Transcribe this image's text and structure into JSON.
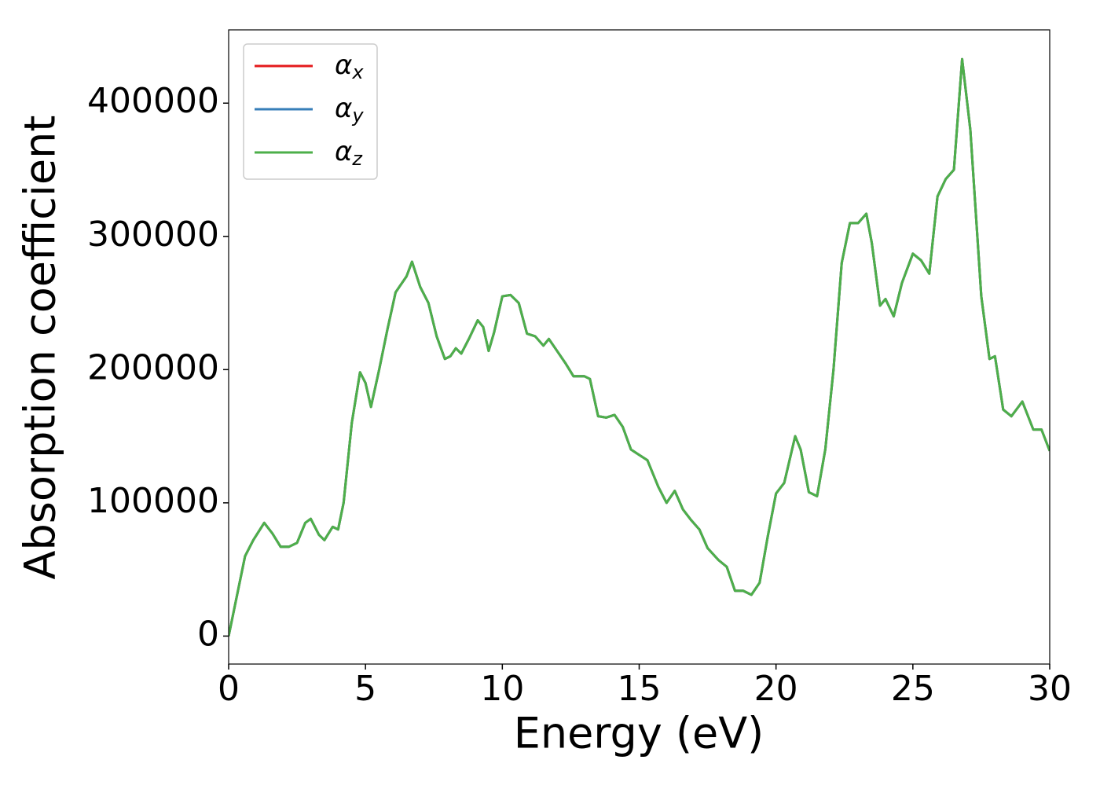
{
  "chart_data": {
    "type": "line",
    "xlabel": "Energy (eV)",
    "ylabel": "Absorption coefficient",
    "x": [
      0,
      0.3,
      0.6,
      0.9,
      1.3,
      1.6,
      1.9,
      2.2,
      2.5,
      2.8,
      3.0,
      3.3,
      3.5,
      3.8,
      4.0,
      4.2,
      4.5,
      4.8,
      5.0,
      5.2,
      5.5,
      5.8,
      6.1,
      6.3,
      6.5,
      6.7,
      7.0,
      7.3,
      7.6,
      7.9,
      8.1,
      8.3,
      8.5,
      8.8,
      9.1,
      9.3,
      9.5,
      9.7,
      10.0,
      10.3,
      10.6,
      10.9,
      11.2,
      11.5,
      11.7,
      12.0,
      12.3,
      12.6,
      13.0,
      13.2,
      13.5,
      13.8,
      14.1,
      14.4,
      14.7,
      15.0,
      15.3,
      15.7,
      16.0,
      16.3,
      16.6,
      16.9,
      17.2,
      17.5,
      17.9,
      18.2,
      18.5,
      18.8,
      19.1,
      19.4,
      19.7,
      20.0,
      20.3,
      20.7,
      20.9,
      21.2,
      21.5,
      21.8,
      22.1,
      22.4,
      22.7,
      23.0,
      23.3,
      23.5,
      23.8,
      24.0,
      24.3,
      24.6,
      25.0,
      25.3,
      25.6,
      25.9,
      26.2,
      26.5,
      26.8,
      27.1,
      27.5,
      27.8,
      28.0,
      28.3,
      28.6,
      29.0,
      29.4,
      29.7,
      30.0
    ],
    "series": [
      {
        "name": "αx",
        "color": "#e41a1c",
        "values": [
          0,
          30000,
          60000,
          72000,
          85000,
          77000,
          67000,
          67000,
          70000,
          85000,
          88000,
          76000,
          72000,
          82000,
          80000,
          100000,
          160000,
          198000,
          190000,
          172000,
          200000,
          230000,
          258000,
          264000,
          270000,
          281000,
          262000,
          250000,
          225000,
          208000,
          210000,
          216000,
          212000,
          224000,
          237000,
          232000,
          214000,
          228000,
          255000,
          256000,
          250000,
          227000,
          225000,
          218000,
          223000,
          214000,
          205000,
          195000,
          195000,
          193000,
          165000,
          164000,
          166000,
          157000,
          140000,
          136000,
          132000,
          112000,
          100000,
          109000,
          95000,
          87000,
          80000,
          66000,
          57000,
          52000,
          34000,
          34000,
          31000,
          40000,
          75000,
          107000,
          115000,
          150000,
          140000,
          108000,
          105000,
          140000,
          200000,
          280000,
          310000,
          310000,
          317000,
          295000,
          248000,
          253000,
          240000,
          265000,
          287000,
          282000,
          272000,
          330000,
          343000,
          350000,
          433000,
          380000,
          255000,
          208000,
          210000,
          170000,
          165000,
          176000,
          155000,
          155000,
          139000
        ]
      },
      {
        "name": "αy",
        "color": "#377eb8",
        "values": [
          0,
          30000,
          60000,
          72000,
          85000,
          77000,
          67000,
          67000,
          70000,
          85000,
          88000,
          76000,
          72000,
          82000,
          80000,
          100000,
          160000,
          198000,
          190000,
          172000,
          200000,
          230000,
          258000,
          264000,
          270000,
          281000,
          262000,
          250000,
          225000,
          208000,
          210000,
          216000,
          212000,
          224000,
          237000,
          232000,
          214000,
          228000,
          255000,
          256000,
          250000,
          227000,
          225000,
          218000,
          223000,
          214000,
          205000,
          195000,
          195000,
          193000,
          165000,
          164000,
          166000,
          157000,
          140000,
          136000,
          132000,
          112000,
          100000,
          109000,
          95000,
          87000,
          80000,
          66000,
          57000,
          52000,
          34000,
          34000,
          31000,
          40000,
          75000,
          107000,
          115000,
          150000,
          140000,
          108000,
          105000,
          140000,
          200000,
          280000,
          310000,
          310000,
          317000,
          295000,
          248000,
          253000,
          240000,
          265000,
          287000,
          282000,
          272000,
          330000,
          343000,
          350000,
          433000,
          380000,
          255000,
          208000,
          210000,
          170000,
          165000,
          176000,
          155000,
          155000,
          139000
        ]
      },
      {
        "name": "αz",
        "color": "#4daf4a",
        "values": [
          0,
          30000,
          60000,
          72000,
          85000,
          77000,
          67000,
          67000,
          70000,
          85000,
          88000,
          76000,
          72000,
          82000,
          80000,
          100000,
          160000,
          198000,
          190000,
          172000,
          200000,
          230000,
          258000,
          264000,
          270000,
          281000,
          262000,
          250000,
          225000,
          208000,
          210000,
          216000,
          212000,
          224000,
          237000,
          232000,
          214000,
          228000,
          255000,
          256000,
          250000,
          227000,
          225000,
          218000,
          223000,
          214000,
          205000,
          195000,
          195000,
          193000,
          165000,
          164000,
          166000,
          157000,
          140000,
          136000,
          132000,
          112000,
          100000,
          109000,
          95000,
          87000,
          80000,
          66000,
          57000,
          52000,
          34000,
          34000,
          31000,
          40000,
          75000,
          107000,
          115000,
          150000,
          140000,
          108000,
          105000,
          140000,
          200000,
          280000,
          310000,
          310000,
          317000,
          295000,
          248000,
          253000,
          240000,
          265000,
          287000,
          282000,
          272000,
          330000,
          343000,
          350000,
          433000,
          380000,
          255000,
          208000,
          210000,
          170000,
          165000,
          176000,
          155000,
          155000,
          139000
        ]
      }
    ],
    "xlim": [
      0,
      30
    ],
    "xticks": [
      0,
      5,
      10,
      15,
      20,
      25,
      30
    ],
    "ylim": [
      -21000,
      455000
    ],
    "yticks": [
      0,
      100000,
      200000,
      300000,
      400000
    ],
    "grid": false,
    "legend": "upper left"
  }
}
